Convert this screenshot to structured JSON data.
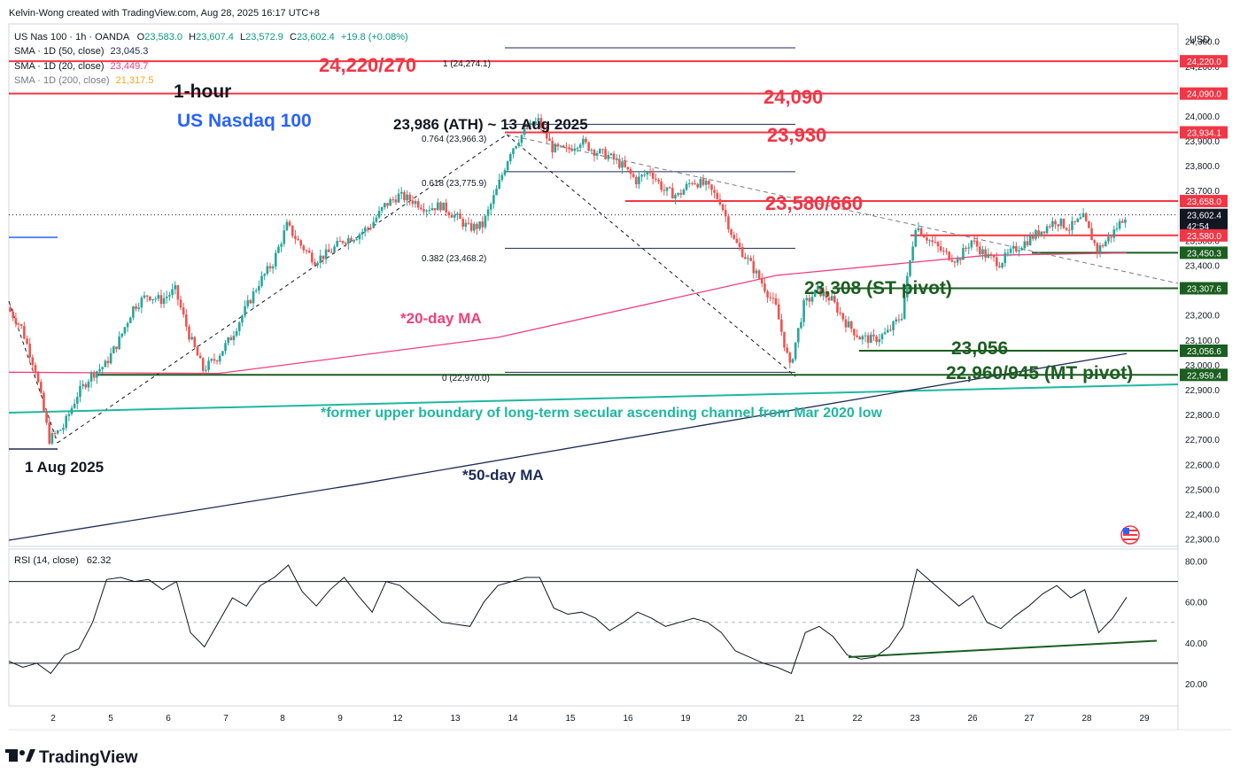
{
  "header": {
    "credit": "Kelvin-Wong created with TradingView.com, Aug 28, 2025 16:17 UTC+8",
    "symbol": "US Nas 100 · 1h · OANDA",
    "o_label": "O",
    "o": "23,583.0",
    "h_label": "H",
    "h": "23,607.4",
    "l_label": "L",
    "l": "23,572.9",
    "c_label": "C",
    "c": "23,602.4",
    "change": "+19.8 (+0.08%)",
    "sma50_label": "SMA · 1D (50, close)",
    "sma50": "23,045.3",
    "sma20_label": "SMA · 1D (20, close)",
    "sma20": "23,449.7",
    "sma200_label": "SMA · 1D (200, close)",
    "sma200": "21,317.5"
  },
  "currency": "USD",
  "annotations": {
    "timeframe": "1-hour",
    "instrument": "US Nasdaq 100",
    "ath": "23,986 (ATH) ~ 13 Aug 2025",
    "low_date": "1 Aug 2025",
    "ma20": "*20-day MA",
    "ma50": "*50-day MA",
    "channel": "*former upper boundary of long-term secular ascending channel from Mar 2020 low",
    "r1": "24,220/270",
    "r2": "24,090",
    "r3": "23,930",
    "r4": "23,580/660",
    "s1": "23,308 (ST pivot)",
    "s2": "23,056",
    "s3": "22,960/945 (MT pivot)"
  },
  "fib": [
    {
      "label": "1 (24,274.1)",
      "value": 24274.1
    },
    {
      "label": "0.764 (23,966.3)",
      "value": 23966.3
    },
    {
      "label": "0.618 (23,775.9)",
      "value": 23775.9
    },
    {
      "label": "0.382 (23,468.2)",
      "value": 23468.2
    },
    {
      "label": "0 (22,970.0)",
      "value": 22970.0
    }
  ],
  "price_axis": {
    "ticks": [
      "24,300.0",
      "24,200.0",
      "24,100.0",
      "24,000.0",
      "23,900.0",
      "23,800.0",
      "23,700.0",
      "23,600.0",
      "23,500.0",
      "23,400.0",
      "23,300.0",
      "23,200.0",
      "23,100.0",
      "23,000.0",
      "22,900.0",
      "22,800.0",
      "22,700.0",
      "22,600.0",
      "22,500.0",
      "22,400.0",
      "22,300.0"
    ],
    "badges": [
      {
        "text": "24,220.0",
        "value": 24220.0,
        "color": "#f23645"
      },
      {
        "text": "24,090.0",
        "value": 24090.0,
        "color": "#f23645"
      },
      {
        "text": "23,934.1",
        "value": 23934.1,
        "color": "#f23645"
      },
      {
        "text": "23,658.0",
        "value": 23658.0,
        "color": "#f23645"
      },
      {
        "text": "23,602.4",
        "value": 23602.4,
        "color": "#131722"
      },
      {
        "text": "42:54",
        "value": 23558,
        "color": "#131722"
      },
      {
        "text": "23,580.0",
        "value": 23520.0,
        "color": "#f23645"
      },
      {
        "text": "23,450.3",
        "value": 23450.3,
        "color": "#1b5e20"
      },
      {
        "text": "23,307.6",
        "value": 23307.6,
        "color": "#1b5e20"
      },
      {
        "text": "23,056.6",
        "value": 23056.6,
        "color": "#1b5e20"
      },
      {
        "text": "22,959.4",
        "value": 22959.4,
        "color": "#1b5e20"
      }
    ]
  },
  "date_axis": [
    "2",
    "5",
    "6",
    "7",
    "8",
    "9",
    "12",
    "13",
    "14",
    "15",
    "16",
    "19",
    "20",
    "21",
    "22",
    "23",
    "26",
    "27",
    "28",
    "29"
  ],
  "rsi": {
    "label": "RSI (14, close)",
    "value": "62.32",
    "ticks": [
      "80.00",
      "60.00",
      "40.00",
      "20.00"
    ]
  },
  "brand": "TradingView",
  "colors": {
    "resistance": "#f23645",
    "support": "#1b5e20",
    "up": "#26a69a",
    "down": "#ef5350",
    "ma20": "#f23f7a",
    "ma50": "#1e2a55",
    "channel": "#1fb7a0",
    "title_blue": "#2962ff"
  },
  "chart_data": {
    "type": "candlestick",
    "ylim": [
      22270,
      24370
    ],
    "rsi_ylim": [
      10,
      85
    ],
    "levels": {
      "resistance": [
        24220,
        24090,
        23934.1,
        23658,
        23580
      ],
      "support": [
        23450.3,
        23307.6,
        23056.6,
        22959.4
      ]
    },
    "price_path": [
      [
        0,
        23230
      ],
      [
        1,
        23150
      ],
      [
        2,
        22980
      ],
      [
        3,
        22700
      ],
      [
        4,
        22750
      ],
      [
        5,
        22880
      ],
      [
        6,
        22960
      ],
      [
        7,
        23000
      ],
      [
        8,
        23100
      ],
      [
        9,
        23230
      ],
      [
        10,
        23280
      ],
      [
        11,
        23260
      ],
      [
        12,
        23300
      ],
      [
        13,
        23120
      ],
      [
        14,
        22980
      ],
      [
        15,
        23030
      ],
      [
        16,
        23110
      ],
      [
        17,
        23220
      ],
      [
        18,
        23330
      ],
      [
        19,
        23410
      ],
      [
        20,
        23560
      ],
      [
        21,
        23480
      ],
      [
        22,
        23420
      ],
      [
        23,
        23450
      ],
      [
        24,
        23500
      ],
      [
        25,
        23520
      ],
      [
        26,
        23560
      ],
      [
        27,
        23640
      ],
      [
        28,
        23680
      ],
      [
        29,
        23660
      ],
      [
        30,
        23630
      ],
      [
        31,
        23640
      ],
      [
        32,
        23600
      ],
      [
        33,
        23550
      ],
      [
        34,
        23560
      ],
      [
        35,
        23700
      ],
      [
        36,
        23860
      ],
      [
        37,
        23940
      ],
      [
        38,
        23980
      ],
      [
        39,
        23870
      ],
      [
        40,
        23860
      ],
      [
        41,
        23900
      ],
      [
        42,
        23860
      ],
      [
        43,
        23840
      ],
      [
        44,
        23800
      ],
      [
        45,
        23740
      ],
      [
        46,
        23780
      ],
      [
        47,
        23700
      ],
      [
        48,
        23680
      ],
      [
        49,
        23740
      ],
      [
        50,
        23720
      ],
      [
        51,
        23660
      ],
      [
        52,
        23500
      ],
      [
        53,
        23420
      ],
      [
        54,
        23330
      ],
      [
        55,
        23230
      ],
      [
        56,
        22990
      ],
      [
        57,
        23240
      ],
      [
        58,
        23300
      ],
      [
        59,
        23260
      ],
      [
        60,
        23170
      ],
      [
        61,
        23110
      ],
      [
        62,
        23100
      ],
      [
        63,
        23130
      ],
      [
        64,
        23200
      ],
      [
        65,
        23560
      ],
      [
        66,
        23500
      ],
      [
        67,
        23450
      ],
      [
        68,
        23420
      ],
      [
        69,
        23500
      ],
      [
        70,
        23440
      ],
      [
        71,
        23410
      ],
      [
        72,
        23460
      ],
      [
        73,
        23500
      ],
      [
        74,
        23540
      ],
      [
        75,
        23580
      ],
      [
        76,
        23550
      ],
      [
        77,
        23590
      ],
      [
        78,
        23460
      ],
      [
        79,
        23520
      ],
      [
        80,
        23602.4
      ]
    ],
    "ma20_path": [
      [
        0,
        22970
      ],
      [
        15,
        22965
      ],
      [
        35,
        23110
      ],
      [
        55,
        23360
      ],
      [
        70,
        23440
      ],
      [
        80,
        23449.7
      ]
    ],
    "ma50_path": [
      [
        0,
        22295
      ],
      [
        25,
        22520
      ],
      [
        50,
        22760
      ],
      [
        80,
        23045.3
      ]
    ],
    "rsi_path": [
      [
        0,
        31
      ],
      [
        1,
        28
      ],
      [
        2,
        30
      ],
      [
        3,
        25
      ],
      [
        4,
        34
      ],
      [
        5,
        37
      ],
      [
        6,
        50
      ],
      [
        7,
        71
      ],
      [
        8,
        72
      ],
      [
        9,
        70
      ],
      [
        10,
        71
      ],
      [
        11,
        66
      ],
      [
        12,
        70
      ],
      [
        13,
        45
      ],
      [
        14,
        38
      ],
      [
        15,
        50
      ],
      [
        16,
        62
      ],
      [
        17,
        58
      ],
      [
        18,
        68
      ],
      [
        19,
        72
      ],
      [
        20,
        78
      ],
      [
        21,
        65
      ],
      [
        22,
        58
      ],
      [
        23,
        66
      ],
      [
        24,
        72
      ],
      [
        25,
        63
      ],
      [
        26,
        55
      ],
      [
        27,
        70
      ],
      [
        28,
        68
      ],
      [
        29,
        62
      ],
      [
        30,
        56
      ],
      [
        31,
        50
      ],
      [
        32,
        49
      ],
      [
        33,
        48
      ],
      [
        34,
        60
      ],
      [
        35,
        68
      ],
      [
        36,
        70
      ],
      [
        37,
        72
      ],
      [
        38,
        72
      ],
      [
        39,
        57
      ],
      [
        40,
        54
      ],
      [
        41,
        55
      ],
      [
        42,
        52
      ],
      [
        43,
        46
      ],
      [
        44,
        50
      ],
      [
        45,
        55
      ],
      [
        46,
        52
      ],
      [
        47,
        48
      ],
      [
        48,
        50
      ],
      [
        49,
        52
      ],
      [
        50,
        50
      ],
      [
        51,
        45
      ],
      [
        52,
        36
      ],
      [
        53,
        33
      ],
      [
        54,
        30
      ],
      [
        55,
        28
      ],
      [
        56,
        25
      ],
      [
        57,
        45
      ],
      [
        58,
        48
      ],
      [
        59,
        43
      ],
      [
        60,
        34
      ],
      [
        61,
        32
      ],
      [
        62,
        33
      ],
      [
        63,
        38
      ],
      [
        64,
        48
      ],
      [
        65,
        76
      ],
      [
        66,
        70
      ],
      [
        67,
        64
      ],
      [
        68,
        58
      ],
      [
        69,
        63
      ],
      [
        70,
        50
      ],
      [
        71,
        47
      ],
      [
        72,
        53
      ],
      [
        73,
        58
      ],
      [
        74,
        64
      ],
      [
        75,
        68
      ],
      [
        76,
        62
      ],
      [
        77,
        66
      ],
      [
        78,
        45
      ],
      [
        79,
        52
      ],
      [
        80,
        62.32
      ]
    ],
    "rsi_levels": [
      70,
      30,
      50
    ]
  }
}
